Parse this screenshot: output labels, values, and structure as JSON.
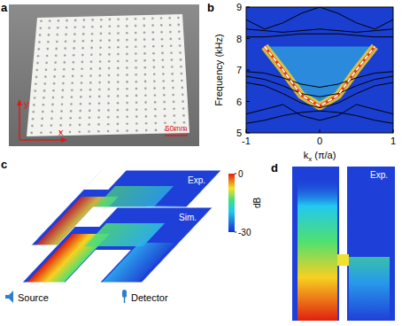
{
  "panel_letters": [
    "a",
    "b",
    "c",
    "d"
  ],
  "photo": {
    "axis_labels": [
      "x",
      "y"
    ],
    "scale_bar": "50mm"
  },
  "chart_data": {
    "type": "line",
    "y_label": "Frequency (kHz)",
    "x_label": {
      "main": "k",
      "sub": "x",
      "rest": " (π/a)"
    },
    "x": [
      -1,
      -0.75,
      -0.5,
      -0.25,
      0,
      0.25,
      0.5,
      0.75,
      1
    ],
    "xlim": [
      -1,
      1
    ],
    "xticks": [
      -1,
      0,
      1
    ],
    "ylim": [
      5,
      9
    ],
    "yticks": [
      5,
      6,
      7,
      8,
      9
    ],
    "series": [
      {
        "color": "#000000",
        "line_style": "solid",
        "values": [
          6.6,
          6.5,
          6.25,
          5.95,
          5.8,
          5.95,
          6.25,
          6.5,
          6.6
        ]
      },
      {
        "color": "#000000",
        "line_style": "solid",
        "values": [
          6.8,
          6.7,
          6.5,
          6.25,
          6.15,
          6.25,
          6.5,
          6.7,
          6.8
        ]
      },
      {
        "color": "#000000",
        "line_style": "solid",
        "values": [
          6.95,
          6.9,
          6.75,
          6.55,
          6.45,
          6.55,
          6.75,
          6.9,
          6.95
        ]
      },
      {
        "color": "#000000",
        "line_style": "solid",
        "values": [
          5.3,
          5.4,
          5.55,
          5.65,
          5.7,
          5.65,
          5.55,
          5.4,
          5.3
        ]
      },
      {
        "color": "#000000",
        "line_style": "solid",
        "values": [
          5.6,
          5.75,
          5.9,
          5.55,
          5.4,
          5.55,
          5.9,
          5.75,
          5.6
        ]
      },
      {
        "color": "#000000",
        "line_style": "solid",
        "values": [
          8.05,
          8.05,
          8.1,
          8.15,
          8.15,
          8.15,
          8.1,
          8.05,
          8.05
        ]
      },
      {
        "color": "#000000",
        "line_style": "solid",
        "values": [
          8.3,
          8.25,
          8.2,
          8.25,
          8.3,
          8.25,
          8.2,
          8.25,
          8.3
        ]
      },
      {
        "color": "#000000",
        "line_style": "solid",
        "values": [
          8.6,
          8.3,
          8.5,
          8.8,
          9.0,
          8.8,
          8.5,
          8.3,
          8.6
        ]
      },
      {
        "color": "#ffffff",
        "line_style": "dashed",
        "values": [
          null,
          7.75,
          7.0,
          6.2,
          5.85,
          6.2,
          7.0,
          7.75,
          null
        ]
      }
    ]
  },
  "field_maps": {
    "colorbar": {
      "label": "dB",
      "range": [
        -30,
        0
      ],
      "ticks": [
        0,
        -30
      ]
    },
    "c": {
      "layers": [
        "Exp.",
        "Sim."
      ],
      "source": "Source",
      "detector": "Detector"
    },
    "d": {
      "label": "Exp."
    }
  }
}
